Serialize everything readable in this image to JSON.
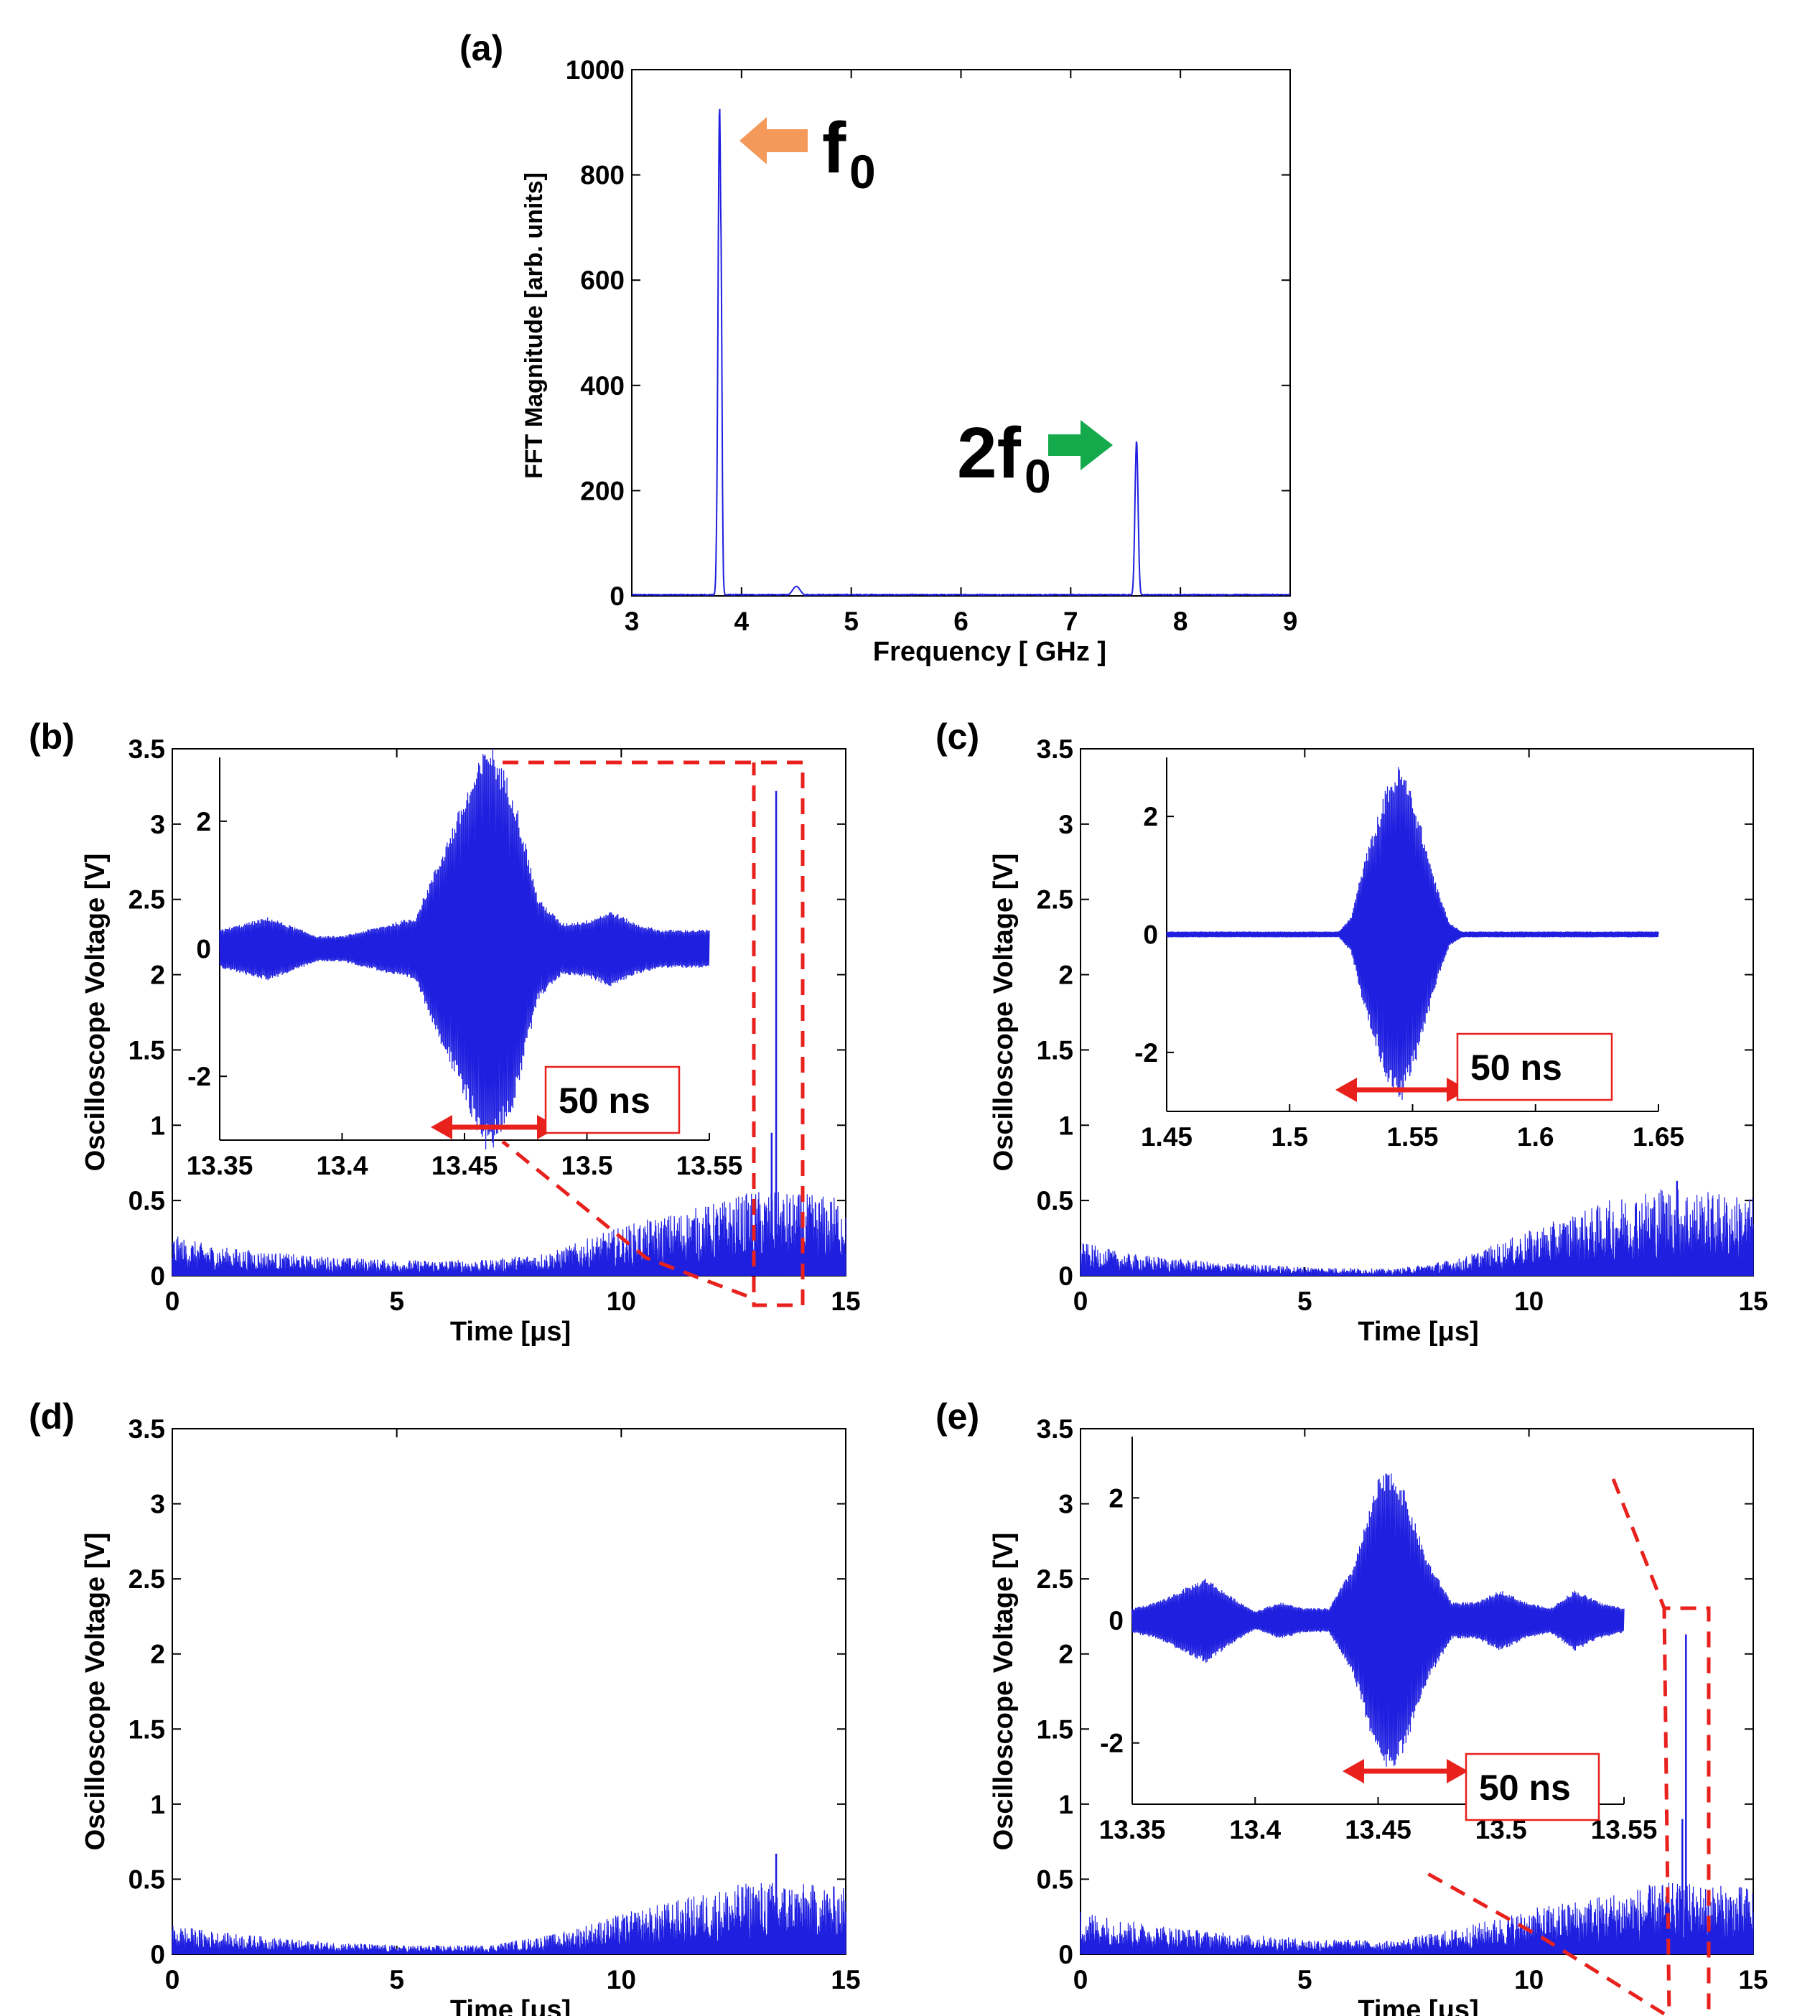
{
  "chart_data": [
    {
      "panel": "(a)",
      "type": "line",
      "xlabel": "Frequency [ GHz ]",
      "ylabel": "FFT Magnitude [arb. units]",
      "xlim": [
        3,
        9
      ],
      "ylim": [
        0,
        1000
      ],
      "xticks": [
        "3",
        "4",
        "5",
        "6",
        "7",
        "8",
        "9"
      ],
      "yticks": [
        "0",
        "200",
        "400",
        "600",
        "800",
        "1000"
      ],
      "color": "#1f1fe0",
      "peaks": [
        {
          "x": 3.8,
          "y": 930,
          "width": 0.02
        },
        {
          "x": 3.81,
          "y": 740,
          "width": 0.015
        },
        {
          "x": 4.5,
          "y": 18,
          "width": 0.05
        },
        {
          "x": 7.6,
          "y": 295,
          "width": 0.02
        }
      ],
      "annotations": [
        {
          "base": "f",
          "sub": "0",
          "color": "#f4995a"
        },
        {
          "base": "2f",
          "sub": "0",
          "color": "#14aa4c"
        }
      ]
    },
    {
      "panel": "(b)",
      "type": "line",
      "xlabel": "Time [μs]",
      "ylabel": "Oscilloscope Voltage [V]",
      "xlim": [
        0,
        15
      ],
      "ylim": [
        0,
        3.5
      ],
      "xticks": [
        "0",
        "5",
        "10",
        "15"
      ],
      "yticks": [
        "0",
        "0.5",
        "1",
        "1.5",
        "2",
        "2.5",
        "3",
        "3.5"
      ],
      "color": "#1f1fe0",
      "envelope": [
        [
          0,
          0.18
        ],
        [
          1,
          0.13
        ],
        [
          3,
          0.09
        ],
        [
          5,
          0.07
        ],
        [
          7,
          0.07
        ],
        [
          8.5,
          0.11
        ],
        [
          10,
          0.22
        ],
        [
          12,
          0.32
        ],
        [
          13,
          0.38
        ],
        [
          15,
          0.35
        ]
      ],
      "spikes": [
        {
          "x": 13.45,
          "y": 3.22
        },
        {
          "x": 13.35,
          "y": 0.95
        }
      ],
      "inset": {
        "xlim": [
          13.35,
          13.55
        ],
        "ylim": [
          -3,
          3
        ],
        "xticks": [
          "13.35",
          "13.4",
          "13.45",
          "13.5",
          "13.55"
        ],
        "yticks": [
          "-2",
          "0",
          "2"
        ],
        "envelope": [
          [
            13.35,
            0.3
          ],
          [
            13.37,
            0.5
          ],
          [
            13.38,
            0.35
          ],
          [
            13.39,
            0.2
          ],
          [
            13.4,
            0.2
          ],
          [
            13.41,
            0.3
          ],
          [
            13.42,
            0.4
          ],
          [
            13.43,
            0.5
          ],
          [
            13.45,
            2.4
          ],
          [
            13.46,
            3.3
          ],
          [
            13.47,
            2.5
          ],
          [
            13.48,
            0.8
          ],
          [
            13.49,
            0.4
          ],
          [
            13.5,
            0.45
          ],
          [
            13.51,
            0.6
          ],
          [
            13.52,
            0.4
          ],
          [
            13.53,
            0.3
          ],
          [
            13.55,
            0.3
          ]
        ],
        "scale_bar": "50 ns"
      }
    },
    {
      "panel": "(c)",
      "type": "line",
      "xlabel": "Time [μs]",
      "ylabel": "Oscilloscope Voltage [V]",
      "xlim": [
        0,
        15
      ],
      "ylim": [
        0,
        3.5
      ],
      "xticks": [
        "0",
        "5",
        "10",
        "15"
      ],
      "yticks": [
        "0",
        "0.5",
        "1",
        "1.5",
        "2",
        "2.5",
        "3",
        "3.5"
      ],
      "color": "#1f1fe0",
      "envelope": [
        [
          0,
          0.15
        ],
        [
          1,
          0.1
        ],
        [
          3,
          0.06
        ],
        [
          5,
          0.04
        ],
        [
          7,
          0.03
        ],
        [
          8.5,
          0.08
        ],
        [
          10,
          0.2
        ],
        [
          12,
          0.35
        ],
        [
          13,
          0.4
        ],
        [
          15,
          0.35
        ]
      ],
      "spikes": [
        {
          "x": 13.3,
          "y": 0.63
        }
      ],
      "inset": {
        "xlim": [
          1.45,
          1.65
        ],
        "ylim": [
          -3,
          3
        ],
        "xticks": [
          "1.45",
          "1.5",
          "1.55",
          "1.6",
          "1.65"
        ],
        "yticks": [
          "-2",
          "0",
          "2"
        ],
        "envelope": [
          [
            1.45,
            0.05
          ],
          [
            1.52,
            0.05
          ],
          [
            1.525,
            0.3
          ],
          [
            1.53,
            1.2
          ],
          [
            1.54,
            2.6
          ],
          [
            1.545,
            2.9
          ],
          [
            1.55,
            2.4
          ],
          [
            1.56,
            0.8
          ],
          [
            1.565,
            0.2
          ],
          [
            1.57,
            0.05
          ],
          [
            1.65,
            0.05
          ]
        ],
        "scale_bar": "50 ns"
      }
    },
    {
      "panel": "(d)",
      "type": "line",
      "xlabel": "Time [μs]",
      "ylabel": "Oscilloscope Voltage [V]",
      "xlim": [
        0,
        15
      ],
      "ylim": [
        0,
        3.5
      ],
      "xticks": [
        "0",
        "5",
        "10",
        "15"
      ],
      "yticks": [
        "0",
        "0.5",
        "1",
        "1.5",
        "2",
        "2.5",
        "3",
        "3.5"
      ],
      "color": "#1f1fe0",
      "envelope": [
        [
          0,
          0.13
        ],
        [
          1,
          0.1
        ],
        [
          3,
          0.06
        ],
        [
          5,
          0.04
        ],
        [
          7,
          0.04
        ],
        [
          8.5,
          0.09
        ],
        [
          10,
          0.18
        ],
        [
          12,
          0.28
        ],
        [
          13,
          0.33
        ],
        [
          15,
          0.3
        ]
      ],
      "spikes": [
        {
          "x": 13.45,
          "y": 0.67
        }
      ]
    },
    {
      "panel": "(e)",
      "type": "line",
      "xlabel": "Time [μs]",
      "ylabel": "Oscilloscope Voltage [V]",
      "xlim": [
        0,
        15
      ],
      "ylim": [
        0,
        3.5
      ],
      "xticks": [
        "0",
        "5",
        "10",
        "15"
      ],
      "yticks": [
        "0",
        "0.5",
        "1",
        "1.5",
        "2",
        "2.5",
        "3",
        "3.5"
      ],
      "color": "#1f1fe0",
      "envelope": [
        [
          0,
          0.2
        ],
        [
          1,
          0.15
        ],
        [
          3,
          0.1
        ],
        [
          5,
          0.07
        ],
        [
          7,
          0.06
        ],
        [
          8.5,
          0.12
        ],
        [
          10,
          0.2
        ],
        [
          12,
          0.28
        ],
        [
          13,
          0.32
        ],
        [
          15,
          0.3
        ]
      ],
      "spikes": [
        {
          "x": 13.5,
          "y": 2.13
        },
        {
          "x": 13.42,
          "y": 0.9
        }
      ],
      "inset": {
        "xlim": [
          13.35,
          13.55
        ],
        "ylim": [
          -3,
          3
        ],
        "xticks": [
          "13.35",
          "13.4",
          "13.45",
          "13.5",
          "13.55"
        ],
        "yticks": [
          "-2",
          "0",
          "2"
        ],
        "envelope": [
          [
            13.35,
            0.2
          ],
          [
            13.36,
            0.3
          ],
          [
            13.37,
            0.5
          ],
          [
            13.38,
            0.7
          ],
          [
            13.39,
            0.4
          ],
          [
            13.4,
            0.15
          ],
          [
            13.41,
            0.3
          ],
          [
            13.42,
            0.2
          ],
          [
            13.43,
            0.2
          ],
          [
            13.44,
            0.9
          ],
          [
            13.45,
            2.3
          ],
          [
            13.455,
            2.5
          ],
          [
            13.46,
            2.2
          ],
          [
            13.47,
            1.0
          ],
          [
            13.48,
            0.3
          ],
          [
            13.49,
            0.3
          ],
          [
            13.5,
            0.5
          ],
          [
            13.51,
            0.3
          ],
          [
            13.52,
            0.2
          ],
          [
            13.53,
            0.5
          ],
          [
            13.54,
            0.3
          ],
          [
            13.55,
            0.2
          ]
        ],
        "scale_bar": "50 ns"
      }
    }
  ]
}
